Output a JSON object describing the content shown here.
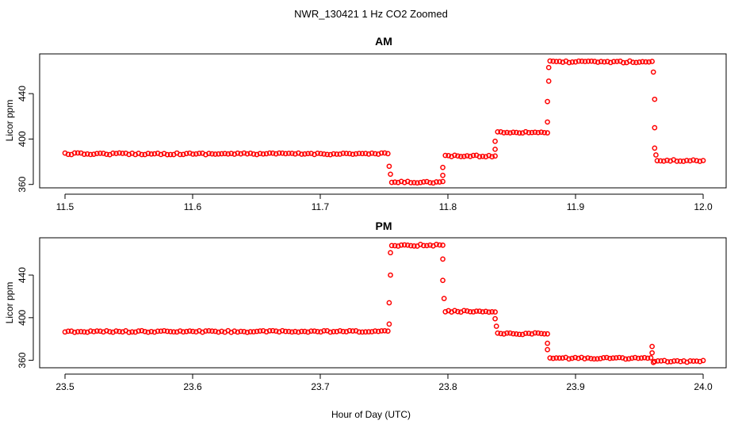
{
  "figure": {
    "title": "NWR_130421  1 Hz CO2 Zoomed",
    "xlabel": "Hour of Day (UTC)"
  },
  "colors": {
    "points": "#ff0000",
    "axis": "#000000",
    "background": "#ffffff"
  },
  "chart_data": [
    {
      "type": "scatter",
      "title": "AM",
      "xlabel": "",
      "ylabel": "Licor ppm",
      "xlim": [
        11.5,
        12.0
      ],
      "ylim": [
        357,
        475
      ],
      "xticks": [
        "11.5",
        "11.6",
        "11.7",
        "11.8",
        "11.9",
        "12.0"
      ],
      "yticks": [
        "360",
        "400",
        "440"
      ],
      "grid": false,
      "marker": "open-circle",
      "color": "#ff0000",
      "segments": [
        {
          "x0": 11.5,
          "x1": 11.753,
          "y": 387
        },
        {
          "x0": 11.756,
          "x1": 11.796,
          "y": 362
        },
        {
          "x0": 11.798,
          "x1": 11.837,
          "y": 385
        },
        {
          "x0": 11.839,
          "x1": 11.878,
          "y": 406
        },
        {
          "x0": 11.88,
          "x1": 11.96,
          "y": 468
        },
        {
          "x0": 11.964,
          "x1": 12.0,
          "y": 381
        }
      ],
      "transitions": [
        {
          "x": 11.754,
          "y": 376
        },
        {
          "x": 11.755,
          "y": 369
        },
        {
          "x": 11.796,
          "y": 368
        },
        {
          "x": 11.796,
          "y": 375
        },
        {
          "x": 11.837,
          "y": 391
        },
        {
          "x": 11.837,
          "y": 398
        },
        {
          "x": 11.878,
          "y": 415
        },
        {
          "x": 11.878,
          "y": 433
        },
        {
          "x": 11.879,
          "y": 451
        },
        {
          "x": 11.879,
          "y": 463
        },
        {
          "x": 11.961,
          "y": 459
        },
        {
          "x": 11.962,
          "y": 435
        },
        {
          "x": 11.962,
          "y": 410
        },
        {
          "x": 11.962,
          "y": 392
        },
        {
          "x": 11.963,
          "y": 386
        }
      ]
    },
    {
      "type": "scatter",
      "title": "PM",
      "xlabel": "",
      "ylabel": "Licor ppm",
      "xlim": [
        23.5,
        24.0
      ],
      "ylim": [
        353,
        475
      ],
      "xticks": [
        "23.5",
        "23.6",
        "23.7",
        "23.8",
        "23.9",
        "24.0"
      ],
      "yticks": [
        "360",
        "400",
        "440"
      ],
      "grid": false,
      "marker": "open-circle",
      "color": "#ff0000",
      "segments": [
        {
          "x0": 23.5,
          "x1": 23.753,
          "y": 387
        },
        {
          "x0": 23.756,
          "x1": 23.796,
          "y": 468
        },
        {
          "x0": 23.798,
          "x1": 23.837,
          "y": 406
        },
        {
          "x0": 23.839,
          "x1": 23.878,
          "y": 385
        },
        {
          "x0": 23.88,
          "x1": 23.959,
          "y": 362
        },
        {
          "x0": 23.962,
          "x1": 24.0,
          "y": 359
        }
      ],
      "transitions": [
        {
          "x": 23.754,
          "y": 394
        },
        {
          "x": 23.754,
          "y": 414
        },
        {
          "x": 23.755,
          "y": 440
        },
        {
          "x": 23.755,
          "y": 461
        },
        {
          "x": 23.796,
          "y": 455
        },
        {
          "x": 23.796,
          "y": 435
        },
        {
          "x": 23.797,
          "y": 418
        },
        {
          "x": 23.837,
          "y": 399
        },
        {
          "x": 23.838,
          "y": 392
        },
        {
          "x": 23.878,
          "y": 376
        },
        {
          "x": 23.878,
          "y": 370
        },
        {
          "x": 23.96,
          "y": 373
        },
        {
          "x": 23.96,
          "y": 367
        },
        {
          "x": 23.961,
          "y": 358
        }
      ]
    }
  ]
}
